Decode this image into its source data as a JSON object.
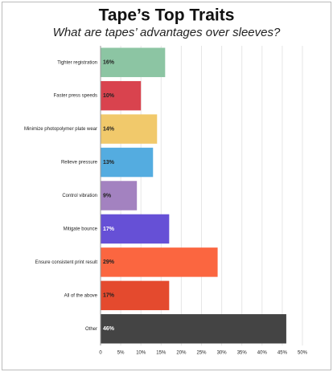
{
  "chart_data": {
    "type": "bar",
    "orientation": "horizontal",
    "title": "Tape’s Top Traits",
    "subtitle": "What are tapes’ advantages over sleeves?",
    "categories": [
      "Tighter registration",
      "Faster press speeds",
      "Minimize photopolymer plate wear",
      "Relieve pressure",
      "Control vibration",
      "Mitigate bounce",
      "Ensure consistent print result",
      "All of the above",
      "Other"
    ],
    "values": [
      16,
      10,
      14,
      13,
      9,
      17,
      29,
      17,
      46
    ],
    "value_labels": [
      "16%",
      "10%",
      "14%",
      "13%",
      "9%",
      "17%",
      "29%",
      "17%",
      "46%"
    ],
    "colors": [
      "#8cc5a3",
      "#d9434e",
      "#f1c96b",
      "#54ace0",
      "#a382c0",
      "#6650d6",
      "#fb6640",
      "#e44a2e",
      "#444444"
    ],
    "xlim": [
      0,
      50
    ],
    "xticks": [
      0,
      {
        "value": 5,
        "label": "5%"
      },
      {
        "value": 10,
        "label": "10%"
      },
      {
        "value": 15,
        "label": "15%"
      },
      {
        "value": 20,
        "label": "20%"
      },
      {
        "value": 25,
        "label": "25%"
      },
      {
        "value": 30,
        "label": "30%"
      },
      {
        "value": 35,
        "label": "35%"
      },
      {
        "value": 40,
        "label": "40%"
      },
      {
        "value": 45,
        "label": "45%"
      },
      {
        "value": 50,
        "label": "50%"
      }
    ],
    "grid": true
  }
}
